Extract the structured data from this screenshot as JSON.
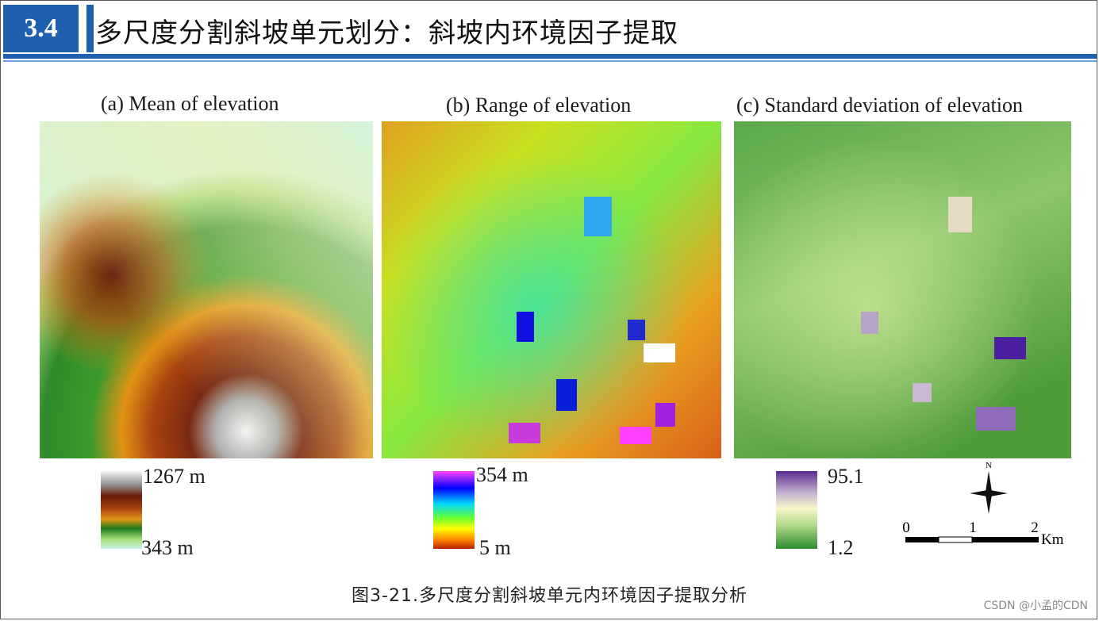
{
  "slide": {
    "section_number": "3.4",
    "title": "多尺度分割斜坡单元划分：斜坡内环境因子提取",
    "caption": "图3-21.多尺度分割斜坡单元内环境因子提取分析"
  },
  "panels": [
    {
      "title": "(a) Mean of elevation",
      "legend_max": "1267 m",
      "legend_min": "343 m",
      "colors": {
        "high": "#f0f0f0",
        "mid_high": "#6b1a0a",
        "mid": "#e08a10",
        "mid_low": "#1e7a1e",
        "low": "#bfeecf"
      }
    },
    {
      "title": "(b) Range of elevation",
      "legend_max": "354 m",
      "legend_min": "5 m",
      "colors": {
        "high": "#ff33ff",
        "mid_high": "#0000ff",
        "mid": "#00e5ff",
        "mid_low": "#aaff00",
        "low": "#cc3300"
      }
    },
    {
      "title": "(c) Standard deviation of elevation",
      "legend_max": "95.1",
      "legend_min": "1.2",
      "colors": {
        "high": "#5a2d91",
        "mid_high": "#c7b3cf",
        "mid": "#f6f6c6",
        "mid_low": "#8ec66a",
        "low": "#2e8b2e"
      }
    }
  ],
  "scale": {
    "ticks": [
      "0",
      "1",
      "2"
    ],
    "unit": "Km",
    "north": "N"
  },
  "watermark": "CSDN @小孟的CDN"
}
